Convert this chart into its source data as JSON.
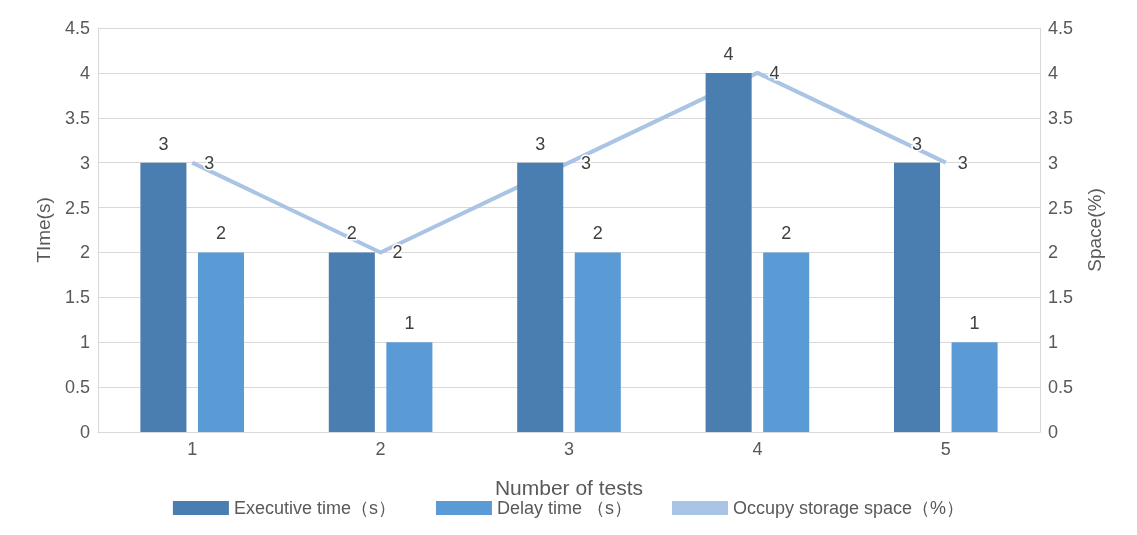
{
  "chart_data": {
    "type": "bar",
    "categories": [
      "1",
      "2",
      "3",
      "4",
      "5"
    ],
    "xlabel": "Number of tests",
    "ylabel": "TIme(s)",
    "y2label": "Space(%)",
    "series": [
      {
        "name": "Executive time（s）",
        "color": "#4a7eb0",
        "values": [
          3,
          2,
          3,
          4,
          3
        ]
      },
      {
        "name": "Delay time （s）",
        "color": "#5b9bd5",
        "values": [
          2,
          1,
          2,
          2,
          1
        ]
      },
      {
        "name": "Occupy storage space（%）",
        "type": "line",
        "axis": "y2",
        "color": "#a9c4e4",
        "values": [
          3,
          2,
          3,
          4,
          3
        ]
      }
    ],
    "ylim": [
      0,
      4.5
    ],
    "yticks": [
      0,
      0.5,
      1,
      1.5,
      2,
      2.5,
      3,
      3.5,
      4,
      4.5
    ],
    "y2lim": [
      0,
      4.5
    ],
    "y2ticks": [
      0,
      0.5,
      1,
      1.5,
      2,
      2.5,
      3,
      3.5,
      4,
      4.5
    ],
    "grid": "y",
    "legend": "bottom",
    "data_labels": true,
    "marker": "none",
    "line_style": "solid"
  }
}
